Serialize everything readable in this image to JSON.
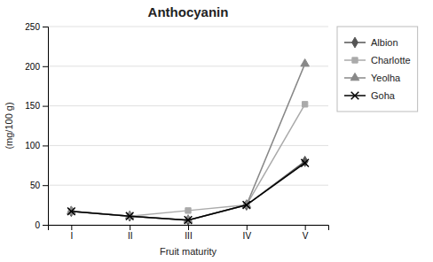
{
  "chart_data": {
    "type": "line",
    "title": "Anthocyanin",
    "x_label": "Fruit maturity",
    "y_label": "(mg/100 g)",
    "categories": [
      "I",
      "II",
      "III",
      "IV",
      "V"
    ],
    "series": [
      {
        "name": "Albion",
        "color": "#555555",
        "marker": "diamond",
        "line_style": "solid",
        "values": [
          17,
          11,
          6,
          25,
          80
        ]
      },
      {
        "name": "Charlotte",
        "color": "#aaaaaa",
        "marker": "square",
        "line_style": "solid",
        "values": [
          17,
          11,
          18,
          25,
          152
        ]
      },
      {
        "name": "Yeolha",
        "color": "#888888",
        "marker": "triangle",
        "line_style": "solid",
        "values": [
          17,
          11,
          6,
          25,
          203
        ]
      },
      {
        "name": "Goha",
        "color": "#000000",
        "marker": "x",
        "line_style": "solid",
        "values": [
          17,
          11,
          6,
          25,
          78
        ]
      }
    ],
    "ylim": [
      0,
      250
    ],
    "yticks": [
      0,
      50,
      100,
      150,
      200,
      250
    ],
    "grid": true,
    "legend": "right"
  }
}
